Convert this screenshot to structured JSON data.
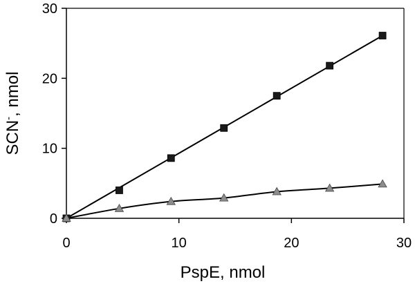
{
  "chart_data": {
    "type": "scatter",
    "xlabel": "PspE, nmol",
    "ylabel_main": "SCN",
    "ylabel_superscript": "-",
    "ylabel_rest": ", nmol",
    "xlim": [
      0,
      30
    ],
    "ylim": [
      0,
      30
    ],
    "x_ticks": [
      0,
      10,
      20,
      30
    ],
    "y_ticks": [
      0,
      10,
      20,
      30
    ],
    "x_tick_labels": [
      "0",
      "10",
      "20",
      "30"
    ],
    "y_tick_labels": [
      "0",
      "10",
      "20",
      "30"
    ],
    "grid": false,
    "series": [
      {
        "marker": "square",
        "color": "#1a1a1a",
        "x": [
          0,
          4.7,
          9.3,
          14.0,
          18.7,
          23.4,
          28.1
        ],
        "y": [
          0,
          4.0,
          8.6,
          12.9,
          17.5,
          21.8,
          26.1
        ],
        "fit": "linear"
      },
      {
        "marker": "triangle",
        "color": "#8c8c8c",
        "x": [
          0,
          4.7,
          9.3,
          14.0,
          18.7,
          23.4,
          28.1
        ],
        "y": [
          0,
          1.4,
          2.4,
          2.9,
          3.8,
          4.3,
          4.9
        ],
        "fit": "curve"
      }
    ]
  }
}
